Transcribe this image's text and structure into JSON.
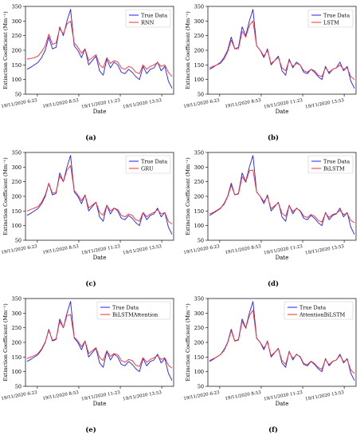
{
  "figure": {
    "panels": [
      {
        "label": "(a)",
        "model": "RNN"
      },
      {
        "label": "(b)",
        "model": "LSTM"
      },
      {
        "label": "(c)",
        "model": "GRU"
      },
      {
        "label": "(d)",
        "model": "BiLSTM"
      },
      {
        "label": "(e)",
        "model": "BiLSTMAttention"
      },
      {
        "label": "(f)",
        "model": "AttentionBiLSTM"
      }
    ]
  },
  "colors": {
    "true_series": "#1f1fff",
    "pred_series": "#ff2a2a"
  },
  "chart_data": [
    {
      "type": "line",
      "panel_label": "(a)",
      "xlabel": "Date",
      "ylabel": "Extinction Coefficient (Mm⁻¹)",
      "ylim": [
        50,
        350
      ],
      "yticks": [
        50,
        100,
        150,
        200,
        250,
        300,
        350
      ],
      "xticklabels": [
        "19/11/2020 6:23",
        "19/11/2020 8:53",
        "19/11/2020 11:23",
        "19/11/2020 13:53"
      ],
      "legend_position": "top-right",
      "series": [
        {
          "name": "True Data",
          "values": [
            135,
            142,
            150,
            158,
            175,
            200,
            245,
            205,
            210,
            280,
            250,
            300,
            340,
            215,
            200,
            175,
            205,
            150,
            165,
            180,
            130,
            115,
            170,
            140,
            160,
            150,
            125,
            120,
            135,
            125,
            110,
            100,
            145,
            120,
            135,
            140,
            160,
            130,
            145,
            95,
            70
          ]
        },
        {
          "name": "RNN",
          "values": [
            170,
            172,
            175,
            180,
            195,
            215,
            255,
            220,
            225,
            275,
            255,
            290,
            300,
            225,
            210,
            190,
            205,
            165,
            175,
            185,
            150,
            140,
            175,
            155,
            165,
            160,
            140,
            135,
            145,
            140,
            125,
            120,
            150,
            135,
            145,
            150,
            158,
            145,
            150,
            125,
            110
          ]
        }
      ]
    },
    {
      "type": "line",
      "panel_label": "(b)",
      "xlabel": "Date",
      "ylabel": "Extinction Coefficient (Mm⁻¹)",
      "ylim": [
        50,
        350
      ],
      "yticks": [
        50,
        100,
        150,
        200,
        250,
        300,
        350
      ],
      "xticklabels": [
        "19/11/2020 6:23",
        "19/11/2020 8:53",
        "19/11/2020 11:23",
        "19/11/2020 13:53"
      ],
      "legend_position": "top-right",
      "series": [
        {
          "name": "True Data",
          "values": [
            135,
            142,
            150,
            158,
            175,
            200,
            245,
            205,
            210,
            280,
            250,
            300,
            340,
            215,
            200,
            175,
            205,
            150,
            165,
            180,
            130,
            115,
            170,
            140,
            160,
            150,
            125,
            120,
            135,
            125,
            110,
            100,
            145,
            120,
            135,
            140,
            160,
            130,
            145,
            95,
            70
          ]
        },
        {
          "name": "LSTM",
          "values": [
            140,
            145,
            150,
            155,
            170,
            195,
            235,
            205,
            205,
            265,
            245,
            285,
            300,
            215,
            200,
            180,
            200,
            155,
            165,
            175,
            140,
            130,
            165,
            145,
            155,
            150,
            130,
            125,
            135,
            130,
            115,
            110,
            140,
            125,
            135,
            140,
            150,
            135,
            140,
            110,
            100
          ]
        }
      ]
    },
    {
      "type": "line",
      "panel_label": "(c)",
      "xlabel": "Date",
      "ylabel": "Extinction Coefficient (Mm⁻¹)",
      "ylim": [
        50,
        350
      ],
      "yticks": [
        50,
        100,
        150,
        200,
        250,
        300,
        350
      ],
      "xticklabels": [
        "19/11/2020 6:23",
        "19/11/2020 8:53",
        "19/11/2020 11:23",
        "19/11/2020 13:53"
      ],
      "legend_position": "top-right",
      "series": [
        {
          "name": "True Data",
          "values": [
            135,
            142,
            150,
            158,
            175,
            200,
            245,
            205,
            210,
            280,
            250,
            300,
            340,
            215,
            200,
            175,
            205,
            150,
            165,
            180,
            130,
            115,
            170,
            140,
            160,
            150,
            125,
            120,
            135,
            125,
            110,
            100,
            145,
            120,
            135,
            140,
            160,
            130,
            145,
            95,
            70
          ]
        },
        {
          "name": "GRU",
          "values": [
            150,
            155,
            160,
            165,
            180,
            205,
            245,
            210,
            215,
            270,
            250,
            290,
            305,
            220,
            205,
            185,
            205,
            160,
            170,
            180,
            145,
            135,
            170,
            150,
            160,
            155,
            135,
            130,
            140,
            135,
            120,
            115,
            145,
            130,
            140,
            145,
            155,
            140,
            145,
            115,
            105
          ]
        }
      ]
    },
    {
      "type": "line",
      "panel_label": "(d)",
      "xlabel": "Date",
      "ylabel": "Extinction Coefficient (Mm⁻¹)",
      "ylim": [
        50,
        350
      ],
      "yticks": [
        50,
        100,
        150,
        200,
        250,
        300,
        350
      ],
      "xticklabels": [
        "19/11/2020 6:23",
        "19/11/2020 8:53",
        "19/11/2020 11:23",
        "19/11/2020 13:53"
      ],
      "legend_position": "top-right",
      "series": [
        {
          "name": "True Data",
          "values": [
            135,
            142,
            150,
            158,
            175,
            200,
            245,
            205,
            210,
            280,
            250,
            300,
            340,
            215,
            200,
            175,
            205,
            150,
            165,
            180,
            130,
            115,
            170,
            140,
            160,
            150,
            125,
            120,
            135,
            125,
            110,
            100,
            145,
            120,
            135,
            140,
            160,
            130,
            145,
            95,
            70
          ]
        },
        {
          "name": "BiLSTM",
          "values": [
            140,
            145,
            152,
            160,
            172,
            198,
            238,
            205,
            208,
            268,
            248,
            288,
            290,
            215,
            200,
            182,
            200,
            158,
            168,
            178,
            142,
            132,
            168,
            148,
            158,
            152,
            132,
            128,
            138,
            132,
            118,
            112,
            142,
            128,
            138,
            142,
            152,
            138,
            142,
            118,
            110
          ]
        }
      ]
    },
    {
      "type": "line",
      "panel_label": "(e)",
      "xlabel": "Date",
      "ylabel": "Extinction Coefficient (Mm⁻¹)",
      "ylim": [
        50,
        350
      ],
      "yticks": [
        50,
        100,
        150,
        200,
        250,
        300,
        350
      ],
      "xticklabels": [
        "19/11/2020 6:23",
        "19/11/2020 8:53",
        "19/11/2020 11:23",
        "19/11/2020 13:53"
      ],
      "legend_position": "top-right",
      "series": [
        {
          "name": "True Data",
          "values": [
            135,
            142,
            150,
            158,
            175,
            200,
            245,
            205,
            210,
            280,
            250,
            300,
            340,
            215,
            200,
            175,
            205,
            150,
            165,
            180,
            130,
            115,
            170,
            140,
            160,
            150,
            125,
            120,
            135,
            125,
            110,
            100,
            145,
            120,
            135,
            140,
            160,
            130,
            145,
            95,
            70
          ]
        },
        {
          "name": "BiLSTMAttention",
          "values": [
            145,
            150,
            155,
            162,
            178,
            202,
            242,
            208,
            212,
            272,
            250,
            292,
            295,
            218,
            205,
            185,
            205,
            162,
            172,
            182,
            148,
            138,
            172,
            152,
            162,
            158,
            138,
            132,
            142,
            138,
            122,
            118,
            148,
            132,
            142,
            148,
            155,
            142,
            148,
            122,
            112
          ]
        }
      ]
    },
    {
      "type": "line",
      "panel_label": "(f)",
      "xlabel": "Date",
      "ylabel": "Extinction Coefficient (Mm⁻¹)",
      "ylim": [
        50,
        350
      ],
      "yticks": [
        50,
        100,
        150,
        200,
        250,
        300,
        350
      ],
      "xticklabels": [
        "19/11/2020 6:23",
        "19/11/2020 8:53",
        "19/11/2020 11:23",
        "19/11/2020 13:53"
      ],
      "legend_position": "top-right",
      "series": [
        {
          "name": "True Data",
          "values": [
            135,
            142,
            150,
            158,
            175,
            200,
            245,
            205,
            210,
            280,
            250,
            300,
            340,
            215,
            200,
            175,
            205,
            150,
            165,
            180,
            130,
            115,
            170,
            140,
            160,
            150,
            125,
            120,
            135,
            125,
            110,
            100,
            145,
            120,
            135,
            140,
            160,
            130,
            145,
            95,
            70
          ]
        },
        {
          "name": "AttentionBiLSTM",
          "values": [
            138,
            144,
            150,
            158,
            172,
            198,
            240,
            204,
            208,
            272,
            248,
            292,
            310,
            214,
            200,
            180,
            202,
            155,
            166,
            178,
            138,
            125,
            168,
            145,
            158,
            152,
            128,
            124,
            136,
            128,
            114,
            108,
            142,
            124,
            136,
            140,
            156,
            134,
            142,
            105,
            95
          ]
        }
      ]
    }
  ]
}
